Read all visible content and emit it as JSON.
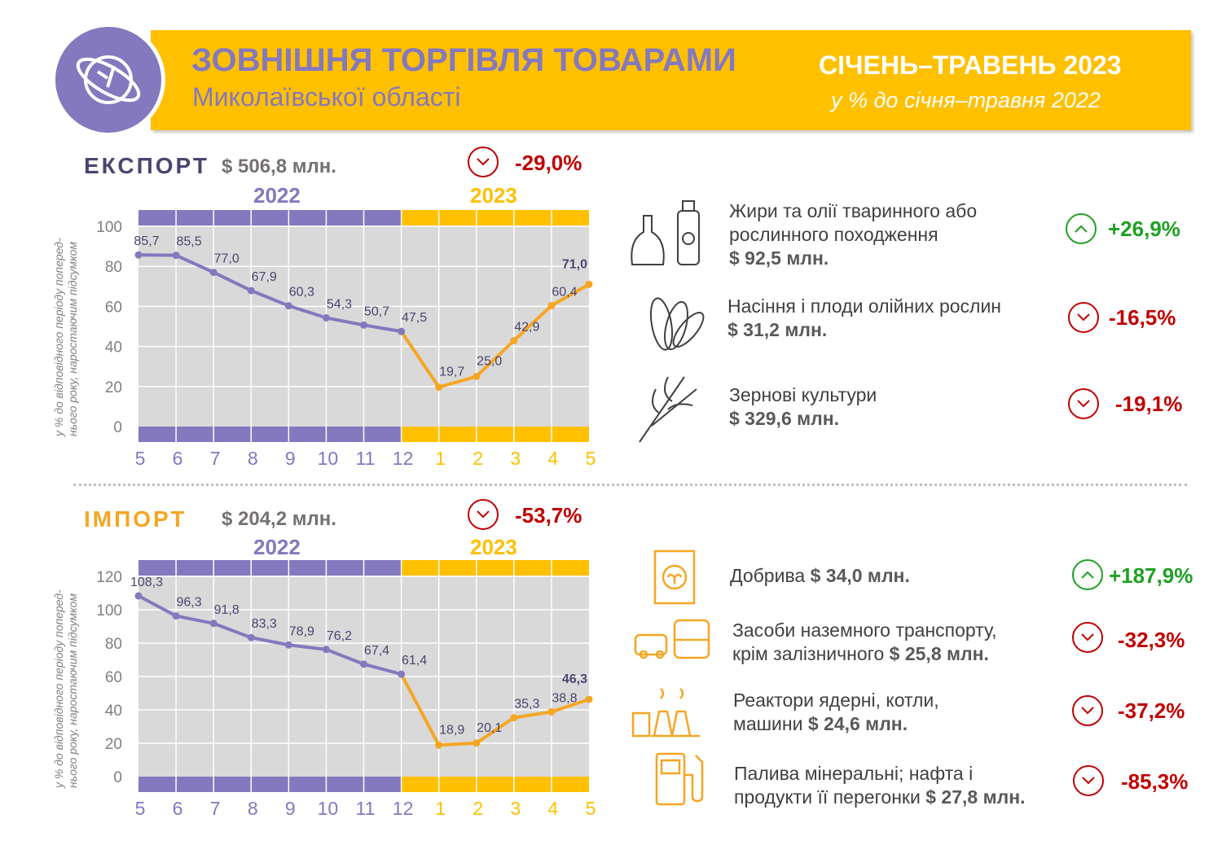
{
  "header": {
    "title": "ЗОВНІШНЯ ТОРГІВЛЯ ТОВАРАМИ",
    "subtitle": "Миколаївської області",
    "period": "СІЧЕНЬ–ТРАВЕНЬ 2023",
    "period_sub": "у % до січня–травня 2022"
  },
  "colors": {
    "purple": "#8478BE",
    "yellow": "#FFC000",
    "orange": "#F5A623",
    "red": "#C00000",
    "green": "#1FA023"
  },
  "export": {
    "label": "ЕКСПОРТ",
    "amount": "$ 506,8 млн.",
    "change": "-29,0%",
    "trend": "down"
  },
  "import": {
    "label": "ІМПОРТ",
    "amount": "$ 204,2 млн.",
    "change": "-53,7%",
    "trend": "down"
  },
  "y_axis_label": [
    "у % до відповідного періоду поперед-",
    "нього року, наростаючим підсумком"
  ],
  "chart_data": [
    {
      "type": "line",
      "title": "ЕКСПОРТ",
      "years": [
        "2022",
        "2023"
      ],
      "x": [
        "5",
        "6",
        "7",
        "8",
        "9",
        "10",
        "11",
        "12",
        "1",
        "2",
        "3",
        "4",
        "5"
      ],
      "values": [
        85.7,
        85.5,
        77.0,
        67.9,
        60.3,
        54.3,
        50.7,
        47.5,
        19.7,
        25.0,
        42.9,
        60.4,
        71.0
      ],
      "labels": [
        "85,7",
        "85,5",
        "77,0",
        "67,9",
        "60,3",
        "54,3",
        "50,7",
        "47,5",
        "19,7",
        "25,0",
        "42,9",
        "60,4",
        "71,0"
      ],
      "yticks": [
        "0",
        "20",
        "40",
        "60",
        "80",
        "100"
      ],
      "ylim": [
        0,
        100
      ],
      "split_index": 7,
      "grid": true
    },
    {
      "type": "line",
      "title": "ІМПОРТ",
      "years": [
        "2022",
        "2023"
      ],
      "x": [
        "5",
        "6",
        "7",
        "8",
        "9",
        "10",
        "11",
        "12",
        "1",
        "2",
        "3",
        "4",
        "5"
      ],
      "values": [
        108.3,
        96.3,
        91.8,
        83.3,
        78.9,
        76.2,
        67.4,
        61.4,
        18.9,
        20.1,
        35.3,
        38.8,
        46.3
      ],
      "labels": [
        "108,3",
        "96,3",
        "91,8",
        "83,3",
        "78,9",
        "76,2",
        "67,4",
        "61,4",
        "18,9",
        "20,1",
        "35,3",
        "38,8",
        "46,3"
      ],
      "yticks": [
        "0",
        "20",
        "40",
        "60",
        "80",
        "100",
        "120"
      ],
      "ylim": [
        0,
        120
      ],
      "split_index": 7,
      "grid": true
    }
  ],
  "export_items": [
    {
      "icon": "oil-bottles-icon",
      "line1": "Жири та олії тваринного або",
      "line2": "рослинного походження",
      "amount": "$ 92,5 млн.",
      "change": "+26,9%",
      "trend": "up"
    },
    {
      "icon": "sunflower-seeds-icon",
      "line1": "Насіння і плоди олійних рослин",
      "line2": "",
      "amount": "$ 31,2 млн.",
      "change": "-16,5%",
      "trend": "down"
    },
    {
      "icon": "wheat-icon",
      "line1": "Зернові культури",
      "line2": "",
      "amount": "$ 329,6 млн.",
      "change": "-19,1%",
      "trend": "down"
    }
  ],
  "import_items": [
    {
      "icon": "fertilizer-bag-icon",
      "line1": "Добрива",
      "amount": "$ 34,0 млн.",
      "change": "+187,9%",
      "trend": "up"
    },
    {
      "icon": "vehicles-icon",
      "line1": "Засоби наземного транспорту,",
      "line2": "крім залізничного",
      "amount": "$ 25,8 млн.",
      "change": "-32,3%",
      "trend": "down"
    },
    {
      "icon": "reactor-icon",
      "line1": "Реактори ядерні, котли,",
      "line2": "машини",
      "amount": "$ 24,6 млн.",
      "change": "-37,2%",
      "trend": "down"
    },
    {
      "icon": "fuel-pump-icon",
      "line1": "Палива мінеральні; нафта і",
      "line2": "продукти її перегонки",
      "amount": "$ 27,8 млн.",
      "change": "-85,3%",
      "trend": "down"
    }
  ]
}
